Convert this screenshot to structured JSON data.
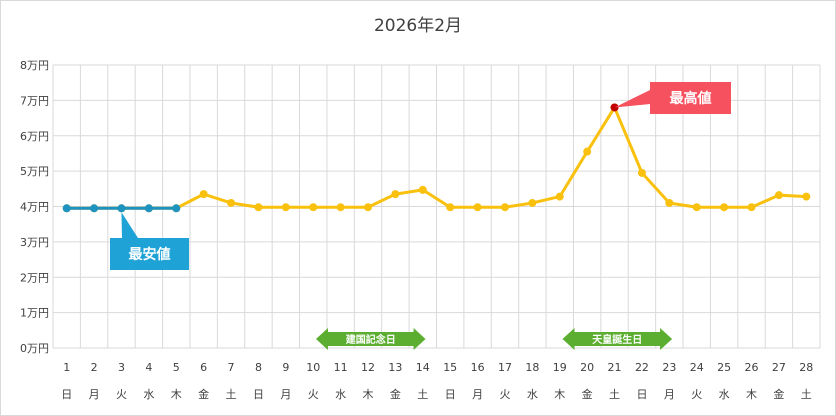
{
  "chart_data": {
    "type": "line",
    "title": "2026年2月",
    "xlabel": "",
    "ylabel": "",
    "y_tick_labels": [
      "0万円",
      "1万円",
      "2万円",
      "3万円",
      "4万円",
      "5万円",
      "6万円",
      "7万円",
      "8万円"
    ],
    "ylim": [
      0,
      80000
    ],
    "grid": true,
    "days": [
      "1",
      "2",
      "3",
      "4",
      "5",
      "6",
      "7",
      "8",
      "9",
      "10",
      "11",
      "12",
      "13",
      "14",
      "15",
      "16",
      "17",
      "18",
      "19",
      "20",
      "21",
      "22",
      "23",
      "24",
      "25",
      "26",
      "27",
      "28"
    ],
    "weekdays": [
      "日",
      "月",
      "火",
      "水",
      "木",
      "金",
      "土",
      "日",
      "月",
      "火",
      "水",
      "木",
      "金",
      "土",
      "日",
      "月",
      "火",
      "水",
      "木",
      "金",
      "土",
      "日",
      "月",
      "火",
      "水",
      "木",
      "金",
      "土"
    ],
    "series": [
      {
        "values": [
          39500,
          39500,
          39500,
          39500,
          39500,
          43500,
          41000,
          39800,
          39800,
          39800,
          39800,
          39800,
          43500,
          44700,
          39800,
          39800,
          39800,
          41000,
          42800,
          55500,
          68000,
          49500,
          41000,
          39800,
          39800,
          39800,
          43200,
          42800
        ],
        "color": "#F9C10E"
      },
      {
        "values": [
          39500,
          39500,
          39500,
          39500,
          39500
        ],
        "color": "#1F93C0"
      }
    ],
    "annotations": {
      "lowest": {
        "label": "最安値",
        "color": "#1FA3D6"
      },
      "highest": {
        "label": "最高値",
        "color": "#F5515F"
      }
    },
    "holidays": [
      {
        "label": "建国記念日",
        "color": "#5BAE2F"
      },
      {
        "label": "天皇誕生日",
        "color": "#5BAE2F"
      }
    ]
  }
}
